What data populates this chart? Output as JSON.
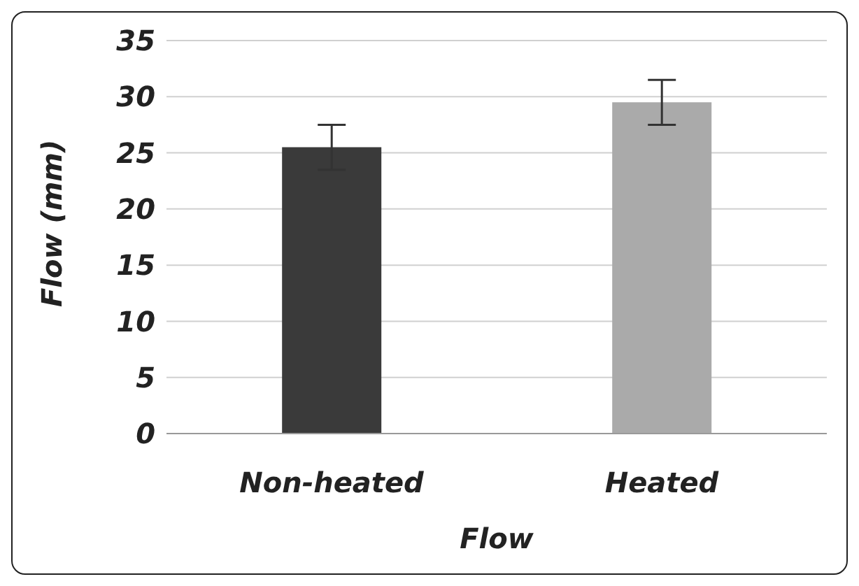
{
  "chart_data": {
    "type": "bar",
    "xlabel": "Flow",
    "ylabel": "Flow (mm)",
    "categories": [
      "Non-heated",
      "Heated"
    ],
    "values": [
      25.5,
      29.5
    ],
    "colors": [
      "#3a3a3a",
      "#aaaaaa"
    ],
    "errors": [
      2,
      2
    ],
    "ylim": [
      0,
      35
    ],
    "yticks": [
      0,
      5,
      10,
      15,
      20,
      25,
      30,
      35
    ],
    "grid": "y"
  }
}
